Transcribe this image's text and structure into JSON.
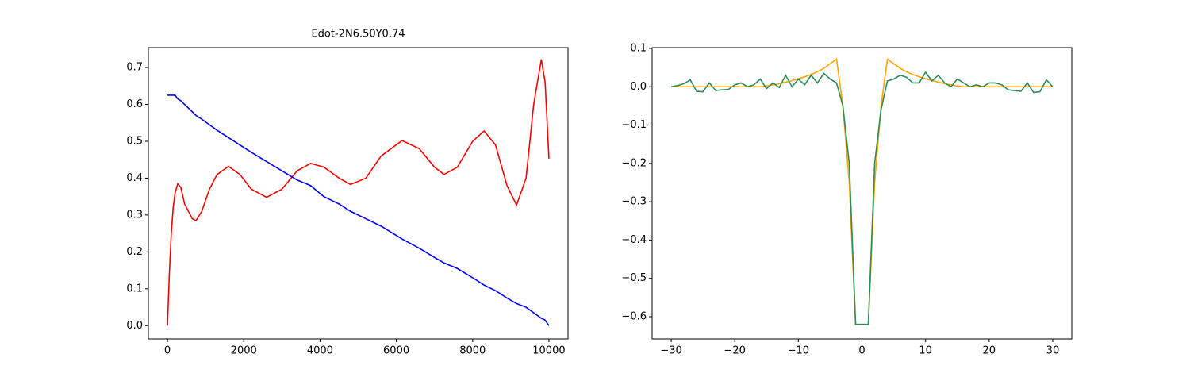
{
  "chart_data": [
    {
      "type": "line",
      "title": "Edot-2N6.50Y0.74",
      "x": [
        0,
        50,
        100,
        150,
        200,
        270,
        350,
        450,
        550,
        650,
        750,
        900,
        1100,
        1300,
        1600,
        1900,
        2200,
        2600,
        3000,
        3400,
        3750,
        4100,
        4500,
        4800,
        5200,
        5600,
        6150,
        6600,
        7000,
        7250,
        7600,
        8000,
        8300,
        8600,
        8900,
        9150,
        9400,
        9600,
        9800,
        9900,
        10000
      ],
      "series": [
        {
          "color": "red",
          "values": [
            0,
            0.14,
            0.25,
            0.32,
            0.36,
            0.385,
            0.375,
            0.33,
            0.31,
            0.29,
            0.285,
            0.31,
            0.37,
            0.41,
            0.432,
            0.41,
            0.37,
            0.348,
            0.37,
            0.42,
            0.44,
            0.43,
            0.4,
            0.383,
            0.4,
            0.46,
            0.502,
            0.48,
            0.43,
            0.41,
            0.43,
            0.5,
            0.528,
            0.49,
            0.38,
            0.327,
            0.4,
            0.6,
            0.722,
            0.66,
            0.453
          ]
        },
        {
          "color": "blue",
          "values": [
            0.625,
            0.625,
            0.625,
            0.625,
            0.625,
            0.615,
            0.61,
            0.6,
            0.59,
            0.58,
            0.57,
            0.56,
            0.545,
            0.53,
            0.51,
            0.49,
            0.47,
            0.445,
            0.42,
            0.395,
            0.38,
            0.35,
            0.33,
            0.31,
            0.29,
            0.27,
            0.235,
            0.21,
            0.185,
            0.17,
            0.155,
            0.13,
            0.11,
            0.095,
            0.075,
            0.06,
            0.05,
            0.035,
            0.02,
            0.015,
            0.0
          ]
        }
      ],
      "xlim": [
        -500,
        10500
      ],
      "ylim": [
        -0.036,
        0.754
      ],
      "xticks": [
        0,
        2000,
        4000,
        6000,
        8000,
        10000
      ],
      "yticks": [
        {
          "value": 0,
          "label": "0.0"
        },
        0.1,
        0.2,
        0.3,
        0.4,
        0.5,
        0.6,
        0.7
      ]
    },
    {
      "type": "line",
      "x": [
        -30,
        -29,
        -28,
        -27,
        -26,
        -25,
        -24,
        -23,
        -22,
        -21,
        -20,
        -19,
        -18,
        -17,
        -16,
        -15,
        -14,
        -13,
        -12,
        -11,
        -10,
        -9,
        -8,
        -7,
        -6,
        -5,
        -4,
        -3,
        -2,
        -1,
        0,
        1,
        2,
        3,
        4,
        5,
        6,
        7,
        8,
        9,
        10,
        11,
        12,
        13,
        14,
        15,
        16,
        17,
        18,
        19,
        20,
        21,
        22,
        23,
        24,
        25,
        26,
        27,
        28,
        29,
        30
      ],
      "series": [
        {
          "color": "orange",
          "values": [
            0,
            0,
            0,
            0,
            0,
            0,
            0,
            0,
            0,
            0,
            0,
            0,
            0,
            0,
            0,
            0.002,
            0.005,
            0.008,
            0.012,
            0.016,
            0.021,
            0.026,
            0.032,
            0.039,
            0.048,
            0.06,
            0.072,
            -0.05,
            -0.25,
            -0.62,
            -0.62,
            -0.62,
            -0.25,
            -0.05,
            0.072,
            0.06,
            0.048,
            0.039,
            0.032,
            0.026,
            0.021,
            0.016,
            0.012,
            0.008,
            0.005,
            0.002,
            0,
            0,
            0,
            0,
            0,
            0,
            0,
            0,
            0,
            0,
            0,
            0,
            0,
            0,
            0
          ]
        },
        {
          "color": "#2e8b57",
          "values": [
            0,
            0.003,
            0.008,
            0.018,
            -0.012,
            -0.013,
            0.01,
            -0.01,
            -0.008,
            -0.007,
            0.005,
            0.01,
            0,
            0.005,
            0.02,
            -0.005,
            0.01,
            -0.002,
            0.03,
            0,
            0.02,
            0.005,
            0.03,
            0.01,
            0.035,
            0.02,
            0.01,
            -0.05,
            -0.2,
            -0.62,
            -0.62,
            -0.62,
            -0.2,
            -0.06,
            0.015,
            0.02,
            0.03,
            0.025,
            0.01,
            0.01,
            0.038,
            0.015,
            0.03,
            0.01,
            0,
            0.02,
            0.01,
            0,
            0.005,
            0,
            0.01,
            0.01,
            0.005,
            -0.008,
            -0.01,
            -0.012,
            0.01,
            -0.015,
            -0.013,
            0.018,
            0
          ]
        }
      ],
      "xlim": [
        -33,
        33
      ],
      "ylim": [
        -0.658,
        0.102
      ],
      "xticks": [
        {
          "value": -30,
          "label": "−30"
        },
        {
          "value": -20,
          "label": "−20"
        },
        {
          "value": -10,
          "label": "−10"
        },
        0,
        10,
        20,
        30
      ],
      "yticks": [
        {
          "value": -0.6,
          "label": "−0.6"
        },
        {
          "value": -0.5,
          "label": "−0.5"
        },
        {
          "value": -0.4,
          "label": "−0.4"
        },
        {
          "value": -0.3,
          "label": "−0.3"
        },
        {
          "value": -0.2,
          "label": "−0.2"
        },
        {
          "value": -0.1,
          "label": "−0.1"
        },
        {
          "value": 0,
          "label": "0.0"
        },
        0.1
      ]
    }
  ]
}
